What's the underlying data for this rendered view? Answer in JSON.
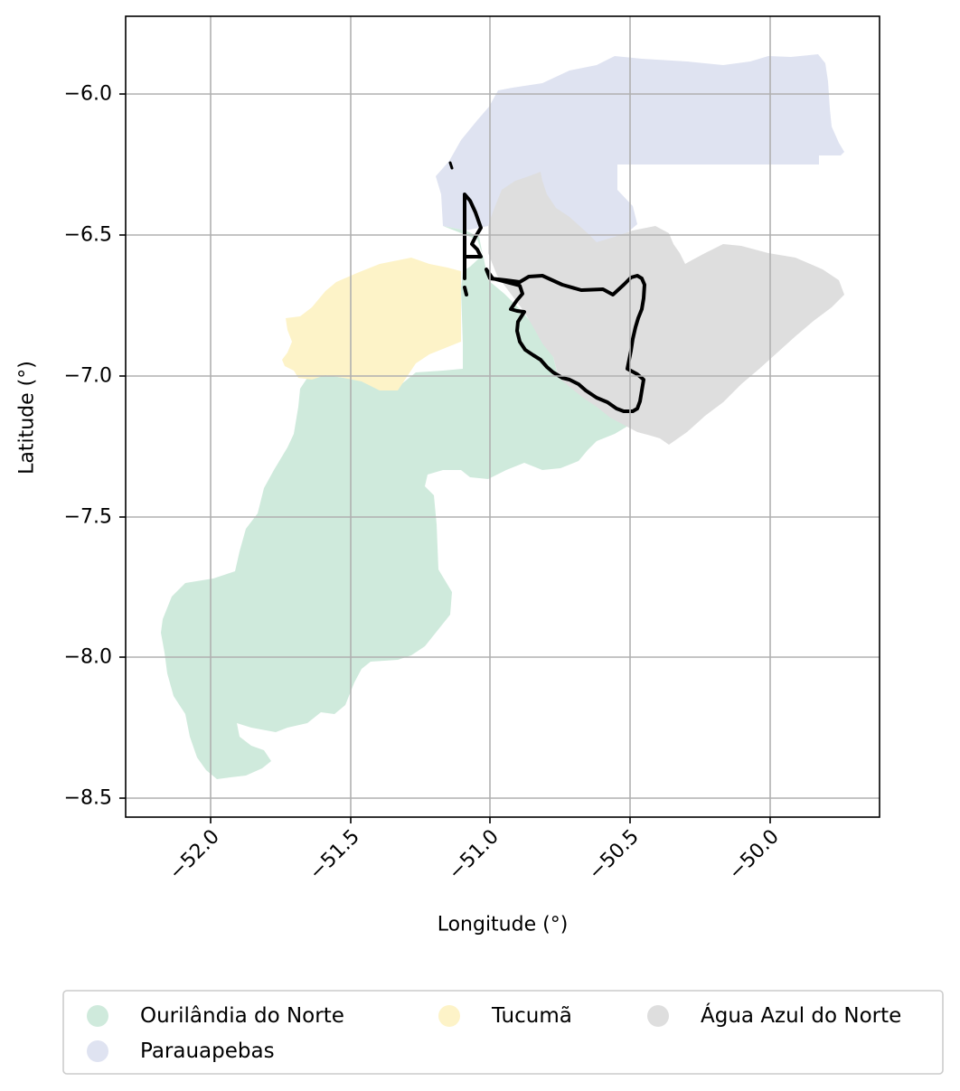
{
  "chart_data": {
    "type": "map",
    "xlabel": "Longitude (°)",
    "ylabel": "Latitude (°)",
    "xlim": [
      -52.3,
      -49.6
    ],
    "ylim": [
      -8.57,
      -5.72
    ],
    "xticks": [
      "−52.0",
      "−51.5",
      "−51.0",
      "−50.5",
      "−50.0"
    ],
    "yticks": [
      "−6.0",
      "−6.5",
      "−7.0",
      "−7.5",
      "−8.0",
      "−8.5"
    ],
    "xtick_values": [
      -52.0,
      -51.5,
      -51.0,
      -50.5,
      -50.0
    ],
    "ytick_values": [
      -6.0,
      -6.5,
      -7.0,
      -7.5,
      -8.0,
      -8.5
    ],
    "grid": true,
    "legend_placement": "below plot, 3 columns",
    "regions": [
      {
        "name": "Ourilândia do Norte",
        "color": "#cfeadc"
      },
      {
        "name": "Parauapebas",
        "color": "#dfe3f1"
      },
      {
        "name": "Tucumã",
        "color": "#fdf3c8"
      },
      {
        "name": "Água Azul do Norte",
        "color": "#dedede"
      }
    ],
    "outline": {
      "color": "#000000"
    }
  }
}
